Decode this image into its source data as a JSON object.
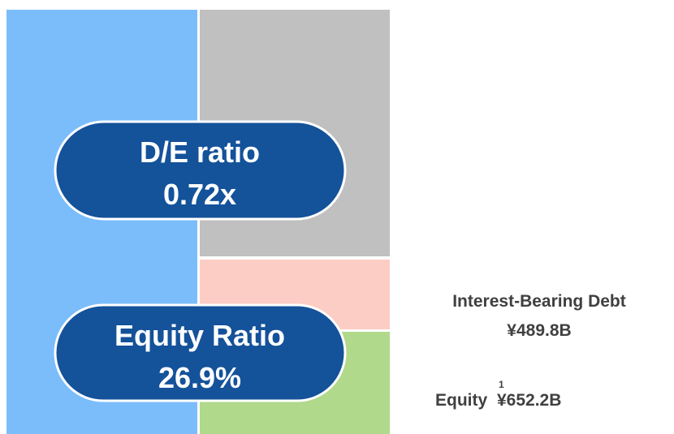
{
  "badges": [
    {
      "label": "D/E ratio",
      "value": "0.72x"
    },
    {
      "label": "Equity Ratio",
      "value": "26.9%"
    }
  ],
  "debt": {
    "title": "Interest-Bearing Debt",
    "value": "¥489.8B"
  },
  "equity": {
    "title": "Equity",
    "note": "1",
    "value": "¥652.2B"
  }
}
